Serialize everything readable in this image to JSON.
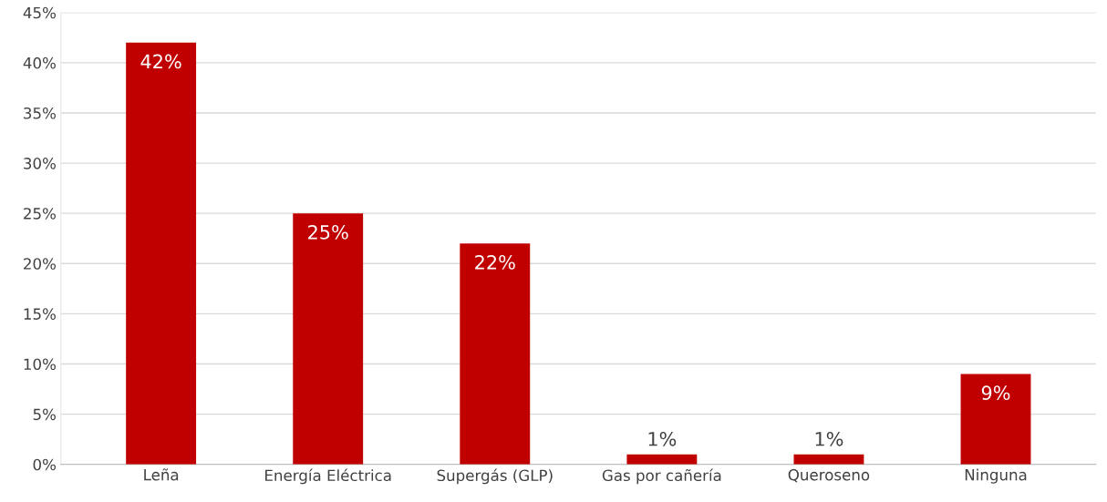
{
  "chart_data": {
    "type": "bar",
    "categories": [
      "Leña",
      "Energía Eléctrica",
      "Supergás (GLP)",
      "Gas por cañería",
      "Queroseno",
      "Ninguna"
    ],
    "values": [
      42,
      25,
      22,
      1,
      1,
      9
    ],
    "value_labels": [
      "42%",
      "25%",
      "22%",
      "1%",
      "1%",
      "9%"
    ],
    "color": "#c00000",
    "ylim": [
      0,
      45
    ],
    "yticks": [
      {
        "value": 0,
        "label": "0%"
      },
      {
        "value": 5,
        "label": "5%"
      },
      {
        "value": 10,
        "label": "10%"
      },
      {
        "value": 15,
        "label": "15%"
      },
      {
        "value": 20,
        "label": "20%"
      },
      {
        "value": 25,
        "label": "25%"
      },
      {
        "value": 30,
        "label": "30%"
      },
      {
        "value": 35,
        "label": "35%"
      },
      {
        "value": 40,
        "label": "40%"
      },
      {
        "value": 45,
        "label": "45%"
      }
    ],
    "grid": "y"
  }
}
